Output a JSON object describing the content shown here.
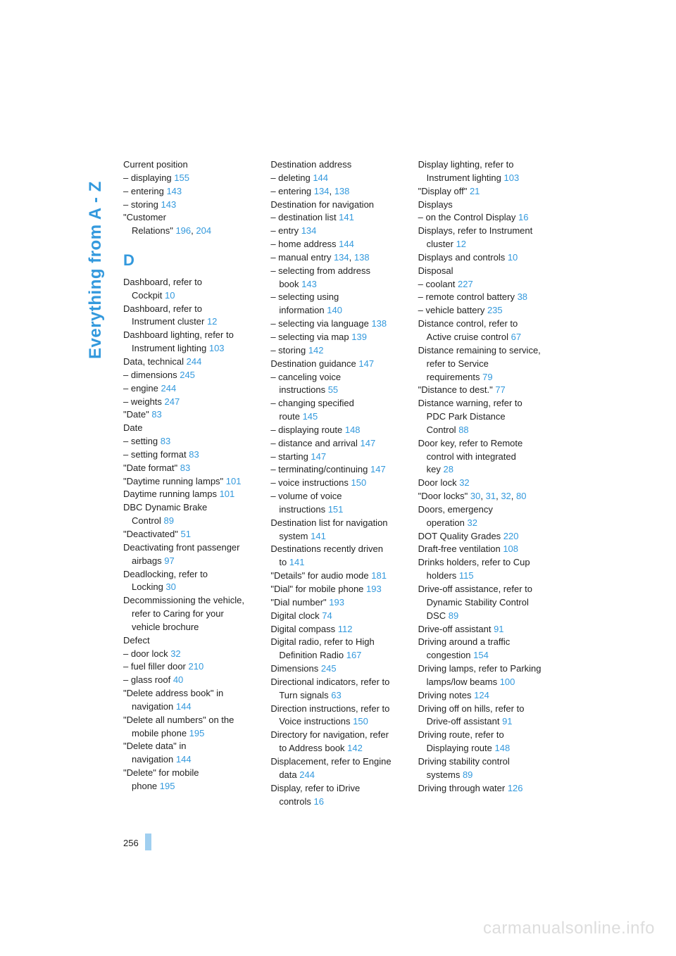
{
  "sidebar_title": "Everything from A - Z",
  "page_number": "256",
  "watermark": "carmanualsonline.info",
  "link_color": "#3399dd",
  "text_color": "#222222",
  "section_letter": "D",
  "columns": [
    [
      {
        "t": "Current position"
      },
      {
        "t": "– displaying ",
        "p": [
          "155"
        ]
      },
      {
        "t": "– entering ",
        "p": [
          "143"
        ]
      },
      {
        "t": "– storing ",
        "p": [
          "143"
        ]
      },
      {
        "t": "\"Customer"
      },
      {
        "t": "Relations\" ",
        "p": [
          "196",
          "204"
        ],
        "cont": true
      },
      {
        "letter": "D"
      },
      {
        "t": "Dashboard, refer to"
      },
      {
        "t": "Cockpit ",
        "p": [
          "10"
        ],
        "cont": true
      },
      {
        "t": "Dashboard, refer to"
      },
      {
        "t": "Instrument cluster ",
        "p": [
          "12"
        ],
        "cont": true
      },
      {
        "t": "Dashboard lighting, refer to"
      },
      {
        "t": "Instrument lighting ",
        "p": [
          "103"
        ],
        "cont": true
      },
      {
        "t": "Data, technical ",
        "p": [
          "244"
        ]
      },
      {
        "t": "– dimensions ",
        "p": [
          "245"
        ]
      },
      {
        "t": "– engine ",
        "p": [
          "244"
        ]
      },
      {
        "t": "– weights ",
        "p": [
          "247"
        ]
      },
      {
        "t": "\"Date\" ",
        "p": [
          "83"
        ]
      },
      {
        "t": "Date"
      },
      {
        "t": "– setting ",
        "p": [
          "83"
        ]
      },
      {
        "t": "– setting format ",
        "p": [
          "83"
        ]
      },
      {
        "t": "\"Date format\" ",
        "p": [
          "83"
        ]
      },
      {
        "t": "\"Daytime running lamps\" ",
        "p": [
          "101"
        ]
      },
      {
        "t": "Daytime running lamps ",
        "p": [
          "101"
        ]
      },
      {
        "t": "DBC Dynamic Brake"
      },
      {
        "t": "Control ",
        "p": [
          "89"
        ],
        "cont": true
      },
      {
        "t": "\"Deactivated\" ",
        "p": [
          "51"
        ]
      },
      {
        "t": "Deactivating front passenger"
      },
      {
        "t": "airbags ",
        "p": [
          "97"
        ],
        "cont": true
      },
      {
        "t": "Deadlocking, refer to"
      },
      {
        "t": "Locking ",
        "p": [
          "30"
        ],
        "cont": true
      },
      {
        "t": "Decommissioning the vehicle,"
      },
      {
        "t": "refer to Caring for your",
        "cont": true
      },
      {
        "t": "vehicle brochure",
        "cont": true
      },
      {
        "t": "Defect"
      },
      {
        "t": "– door lock ",
        "p": [
          "32"
        ]
      },
      {
        "t": "– fuel filler door ",
        "p": [
          "210"
        ]
      },
      {
        "t": "– glass roof ",
        "p": [
          "40"
        ]
      },
      {
        "t": "\"Delete address book\" in"
      },
      {
        "t": "navigation ",
        "p": [
          "144"
        ],
        "cont": true
      },
      {
        "t": "\"Delete all numbers\" on the"
      },
      {
        "t": "mobile phone ",
        "p": [
          "195"
        ],
        "cont": true
      },
      {
        "t": "\"Delete data\" in"
      },
      {
        "t": "navigation ",
        "p": [
          "144"
        ],
        "cont": true
      },
      {
        "t": "\"Delete\" for mobile"
      },
      {
        "t": "phone ",
        "p": [
          "195"
        ],
        "cont": true
      }
    ],
    [
      {
        "t": "Destination address"
      },
      {
        "t": "– deleting ",
        "p": [
          "144"
        ]
      },
      {
        "t": "– entering ",
        "p": [
          "134",
          "138"
        ]
      },
      {
        "t": "Destination for navigation"
      },
      {
        "t": "– destination list ",
        "p": [
          "141"
        ]
      },
      {
        "t": "– entry ",
        "p": [
          "134"
        ]
      },
      {
        "t": "– home address ",
        "p": [
          "144"
        ]
      },
      {
        "t": "– manual entry ",
        "p": [
          "134",
          "138"
        ]
      },
      {
        "t": "– selecting from address"
      },
      {
        "t": "book ",
        "p": [
          "143"
        ],
        "cont": true
      },
      {
        "t": "– selecting using"
      },
      {
        "t": "information ",
        "p": [
          "140"
        ],
        "cont": true
      },
      {
        "t": "– selecting via language ",
        "p": [
          "138"
        ]
      },
      {
        "t": "– selecting via map ",
        "p": [
          "139"
        ]
      },
      {
        "t": "– storing ",
        "p": [
          "142"
        ]
      },
      {
        "t": "Destination guidance ",
        "p": [
          "147"
        ]
      },
      {
        "t": "– canceling voice"
      },
      {
        "t": "instructions ",
        "p": [
          "55"
        ],
        "cont": true
      },
      {
        "t": "– changing specified"
      },
      {
        "t": "route ",
        "p": [
          "145"
        ],
        "cont": true
      },
      {
        "t": "– displaying route ",
        "p": [
          "148"
        ]
      },
      {
        "t": "– distance and arrival ",
        "p": [
          "147"
        ]
      },
      {
        "t": "– starting ",
        "p": [
          "147"
        ]
      },
      {
        "t": "– terminating/continuing ",
        "p": [
          "147"
        ]
      },
      {
        "t": "– voice instructions ",
        "p": [
          "150"
        ]
      },
      {
        "t": "– volume of voice"
      },
      {
        "t": "instructions ",
        "p": [
          "151"
        ],
        "cont": true
      },
      {
        "t": "Destination list for navigation"
      },
      {
        "t": "system ",
        "p": [
          "141"
        ],
        "cont": true
      },
      {
        "t": "Destinations recently driven"
      },
      {
        "t": "to ",
        "p": [
          "141"
        ],
        "cont": true
      },
      {
        "t": "\"Details\" for audio mode ",
        "p": [
          "181"
        ]
      },
      {
        "t": "\"Dial\" for mobile phone ",
        "p": [
          "193"
        ]
      },
      {
        "t": "\"Dial number\" ",
        "p": [
          "193"
        ]
      },
      {
        "t": "Digital clock ",
        "p": [
          "74"
        ]
      },
      {
        "t": "Digital compass ",
        "p": [
          "112"
        ]
      },
      {
        "t": "Digital radio, refer to High"
      },
      {
        "t": "Definition Radio ",
        "p": [
          "167"
        ],
        "cont": true
      },
      {
        "t": "Dimensions ",
        "p": [
          "245"
        ]
      },
      {
        "t": "Directional indicators, refer to"
      },
      {
        "t": "Turn signals ",
        "p": [
          "63"
        ],
        "cont": true
      },
      {
        "t": "Direction instructions, refer to"
      },
      {
        "t": "Voice instructions ",
        "p": [
          "150"
        ],
        "cont": true
      },
      {
        "t": "Directory for navigation, refer"
      },
      {
        "t": "to Address book ",
        "p": [
          "142"
        ],
        "cont": true
      },
      {
        "t": "Displacement, refer to Engine"
      },
      {
        "t": "data ",
        "p": [
          "244"
        ],
        "cont": true
      },
      {
        "t": "Display, refer to iDrive"
      },
      {
        "t": "controls ",
        "p": [
          "16"
        ],
        "cont": true
      }
    ],
    [
      {
        "t": "Display lighting, refer to"
      },
      {
        "t": "Instrument lighting ",
        "p": [
          "103"
        ],
        "cont": true
      },
      {
        "t": "\"Display off\" ",
        "p": [
          "21"
        ]
      },
      {
        "t": "Displays"
      },
      {
        "t": "– on the Control Display ",
        "p": [
          "16"
        ]
      },
      {
        "t": "Displays, refer to Instrument"
      },
      {
        "t": "cluster ",
        "p": [
          "12"
        ],
        "cont": true
      },
      {
        "t": "Displays and controls ",
        "p": [
          "10"
        ]
      },
      {
        "t": "Disposal"
      },
      {
        "t": "– coolant ",
        "p": [
          "227"
        ]
      },
      {
        "t": "– remote control battery ",
        "p": [
          "38"
        ]
      },
      {
        "t": "– vehicle battery ",
        "p": [
          "235"
        ]
      },
      {
        "t": "Distance control, refer to"
      },
      {
        "t": "Active cruise control ",
        "p": [
          "67"
        ],
        "cont": true
      },
      {
        "t": "Distance remaining to service,"
      },
      {
        "t": "refer to Service",
        "cont": true
      },
      {
        "t": "requirements ",
        "p": [
          "79"
        ],
        "cont": true
      },
      {
        "t": "\"Distance to dest.\" ",
        "p": [
          "77"
        ]
      },
      {
        "t": "Distance warning, refer to"
      },
      {
        "t": "PDC Park Distance",
        "cont": true
      },
      {
        "t": "Control ",
        "p": [
          "88"
        ],
        "cont": true
      },
      {
        "t": "Door key, refer to Remote"
      },
      {
        "t": "control with integrated",
        "cont": true
      },
      {
        "t": "key ",
        "p": [
          "28"
        ],
        "cont": true
      },
      {
        "t": "Door lock ",
        "p": [
          "32"
        ]
      },
      {
        "t": "\"Door locks\" ",
        "p": [
          "30",
          "31",
          "32",
          "80"
        ]
      },
      {
        "t": "Doors, emergency"
      },
      {
        "t": "operation ",
        "p": [
          "32"
        ],
        "cont": true
      },
      {
        "t": "DOT Quality Grades ",
        "p": [
          "220"
        ]
      },
      {
        "t": "Draft-free ventilation ",
        "p": [
          "108"
        ]
      },
      {
        "t": "Drinks holders, refer to Cup"
      },
      {
        "t": "holders ",
        "p": [
          "115"
        ],
        "cont": true
      },
      {
        "t": "Drive-off assistance, refer to"
      },
      {
        "t": "Dynamic Stability Control",
        "cont": true
      },
      {
        "t": "DSC ",
        "p": [
          "89"
        ],
        "cont": true
      },
      {
        "t": "Drive-off assistant ",
        "p": [
          "91"
        ]
      },
      {
        "t": "Driving around a traffic"
      },
      {
        "t": "congestion ",
        "p": [
          "154"
        ],
        "cont": true
      },
      {
        "t": "Driving lamps, refer to Parking"
      },
      {
        "t": "lamps/low beams ",
        "p": [
          "100"
        ],
        "cont": true
      },
      {
        "t": "Driving notes ",
        "p": [
          "124"
        ]
      },
      {
        "t": "Driving off on hills, refer to"
      },
      {
        "t": "Drive-off assistant ",
        "p": [
          "91"
        ],
        "cont": true
      },
      {
        "t": "Driving route, refer to"
      },
      {
        "t": "Displaying route ",
        "p": [
          "148"
        ],
        "cont": true
      },
      {
        "t": "Driving stability control"
      },
      {
        "t": "systems ",
        "p": [
          "89"
        ],
        "cont": true
      },
      {
        "t": "Driving through water ",
        "p": [
          "126"
        ]
      }
    ]
  ]
}
